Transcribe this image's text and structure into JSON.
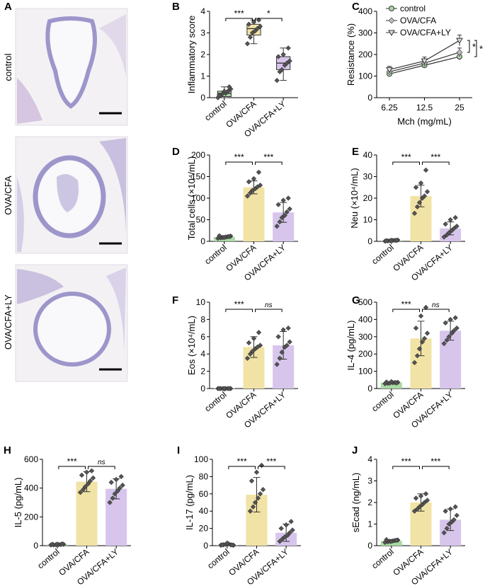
{
  "colors": {
    "control": "#a9d9a3",
    "ova": "#f1e3a5",
    "ly": "#d7c5ec",
    "tissue_bg": "#f3f1f4",
    "tissue_stain": "#8f87c4"
  },
  "panel_a": {
    "letter": "A",
    "rows": [
      {
        "label": "control"
      },
      {
        "label": "OVA/CFA"
      },
      {
        "label": "OVA/CFA+LY"
      }
    ]
  },
  "chart_data": [
    {
      "panel": "B",
      "type": "box",
      "ylabel": "Inflammatory score",
      "ylim": [
        0,
        4
      ],
      "yticks": [
        0,
        1,
        2,
        3,
        4
      ],
      "categories": [
        "control",
        "OVA/CFA",
        "OVA/CFA+LY"
      ],
      "boxes": [
        {
          "min": 0.0,
          "q1": 0.05,
          "median": 0.2,
          "q3": 0.3,
          "max": 0.5
        },
        {
          "min": 2.5,
          "q1": 2.9,
          "median": 3.2,
          "q3": 3.4,
          "max": 3.6
        },
        {
          "min": 0.8,
          "q1": 1.3,
          "median": 1.6,
          "q3": 1.9,
          "max": 2.3
        }
      ],
      "points": [
        [
          0.0,
          0.1,
          0.2,
          0.2,
          0.3,
          0.4,
          0.1,
          0.3,
          0.5
        ],
        [
          2.5,
          2.8,
          3.0,
          3.1,
          3.2,
          3.3,
          3.4,
          3.5,
          3.6
        ],
        [
          0.8,
          1.2,
          1.3,
          1.5,
          1.6,
          1.7,
          1.9,
          2.0,
          2.3
        ]
      ],
      "sig": [
        {
          "from": 0,
          "to": 1,
          "label": "***",
          "italic": false
        },
        {
          "from": 1,
          "to": 2,
          "label": "*",
          "italic": false
        }
      ]
    },
    {
      "panel": "C",
      "type": "line",
      "ylabel": "Resistance (%)",
      "xlabel": "Mch (mg/mL)",
      "ylim": [
        0,
        400
      ],
      "yticks": [
        0,
        100,
        200,
        300,
        400
      ],
      "categories": [
        "6.25",
        "12.5",
        "25"
      ],
      "series": [
        {
          "name": "control",
          "values": [
            110,
            150,
            190
          ],
          "err": [
            10,
            12,
            15
          ],
          "marker": "circle"
        },
        {
          "name": "OVA/CFA",
          "values": [
            120,
            160,
            210
          ],
          "err": [
            12,
            15,
            20
          ],
          "marker": "diamond"
        },
        {
          "name": "OVA/CFA+LY",
          "values": [
            130,
            170,
            265
          ],
          "err": [
            15,
            18,
            25
          ],
          "marker": "triangle"
        }
      ],
      "sig": [
        {
          "label": "*",
          "series": [
            1,
            2
          ]
        },
        {
          "label": "*",
          "series": [
            0,
            2
          ]
        }
      ]
    },
    {
      "panel": "D",
      "type": "bar",
      "ylabel": "Total cells (×10⁴/mL)",
      "ylim": [
        0,
        200
      ],
      "yticks": [
        0,
        50,
        100,
        150,
        200
      ],
      "categories": [
        "control",
        "OVA/CFA",
        "OVA/CFA+LY"
      ],
      "values": [
        10,
        125,
        67
      ],
      "err": [
        3,
        15,
        23
      ],
      "points": [
        [
          7,
          8,
          9,
          10,
          11,
          12,
          13,
          9,
          11
        ],
        [
          105,
          112,
          118,
          122,
          126,
          130,
          138,
          145,
          160
        ],
        [
          35,
          45,
          55,
          60,
          68,
          75,
          85,
          95,
          100
        ]
      ],
      "sig": [
        {
          "from": 0,
          "to": 1,
          "label": "***",
          "italic": false
        },
        {
          "from": 1,
          "to": 2,
          "label": "***",
          "italic": false
        }
      ]
    },
    {
      "panel": "E",
      "type": "bar",
      "ylabel": "Neu (×10⁴/mL)",
      "ylim": [
        0,
        40
      ],
      "yticks": [
        0,
        10,
        20,
        30,
        40
      ],
      "categories": [
        "control",
        "OVA/CFA",
        "OVA/CFA+LY"
      ],
      "values": [
        0.4,
        21,
        6
      ],
      "err": [
        0.2,
        5,
        3
      ],
      "points": [
        [
          0.1,
          0.2,
          0.3,
          0.4,
          0.5,
          0.6,
          0.3,
          0.5,
          0.4
        ],
        [
          13,
          16,
          18,
          20,
          21,
          23,
          25,
          27,
          33
        ],
        [
          2,
          3,
          4,
          5,
          6,
          7,
          8,
          10,
          11
        ]
      ],
      "sig": [
        {
          "from": 0,
          "to": 1,
          "label": "***",
          "italic": false
        },
        {
          "from": 1,
          "to": 2,
          "label": "***",
          "italic": false
        }
      ]
    },
    {
      "panel": "F",
      "type": "bar",
      "ylabel": "Eos (×10⁴/mL)",
      "ylim": [
        0,
        10
      ],
      "yticks": [
        0,
        2,
        4,
        6,
        8,
        10
      ],
      "categories": [
        "control",
        "OVA/CFA",
        "OVA/CFA+LY"
      ],
      "values": [
        0.05,
        4.8,
        5.0
      ],
      "err": [
        0.02,
        1.2,
        1.6
      ],
      "points": [
        [
          0,
          0,
          0,
          0,
          0,
          0,
          0,
          0,
          0
        ],
        [
          3.5,
          4.0,
          4.3,
          4.6,
          4.8,
          5.0,
          5.3,
          5.8,
          6.5
        ],
        [
          2.8,
          3.5,
          4.2,
          4.8,
          5.0,
          5.4,
          6.0,
          6.8,
          7.0
        ]
      ],
      "sig": [
        {
          "from": 0,
          "to": 1,
          "label": "***",
          "italic": false
        },
        {
          "from": 1,
          "to": 2,
          "label": "ns",
          "italic": true
        }
      ]
    },
    {
      "panel": "G",
      "type": "bar",
      "ylabel": "IL-4 (pg/mL)",
      "ylim": [
        0,
        500
      ],
      "yticks": [
        0,
        100,
        200,
        300,
        400,
        500
      ],
      "categories": [
        "control",
        "OVA/CFA",
        "OVA/CFA+LY"
      ],
      "values": [
        35,
        290,
        335
      ],
      "err": [
        5,
        100,
        55
      ],
      "points": [
        [
          28,
          30,
          32,
          34,
          35,
          36,
          38,
          40,
          33
        ],
        [
          150,
          190,
          230,
          270,
          290,
          320,
          350,
          420,
          470
        ],
        [
          260,
          280,
          300,
          320,
          335,
          350,
          380,
          400,
          410
        ]
      ],
      "sig": [
        {
          "from": 0,
          "to": 1,
          "label": "***",
          "italic": false
        },
        {
          "from": 1,
          "to": 2,
          "label": "ns",
          "italic": true
        }
      ]
    },
    {
      "panel": "H",
      "type": "bar",
      "ylabel": "IL-5 (pg/mL)",
      "ylim": [
        0,
        600
      ],
      "yticks": [
        0,
        200,
        400,
        600
      ],
      "categories": [
        "control",
        "OVA/CFA",
        "OVA/CFA+LY"
      ],
      "values": [
        8,
        445,
        395
      ],
      "err": [
        3,
        70,
        70
      ],
      "points": [
        [
          4,
          5,
          6,
          7,
          8,
          9,
          10,
          11,
          12
        ],
        [
          370,
          390,
          410,
          430,
          450,
          470,
          490,
          510,
          520
        ],
        [
          300,
          330,
          360,
          380,
          400,
          420,
          440,
          460,
          480
        ]
      ],
      "sig": [
        {
          "from": 0,
          "to": 1,
          "label": "***",
          "italic": false
        },
        {
          "from": 1,
          "to": 2,
          "label": "ns",
          "italic": true
        }
      ]
    },
    {
      "panel": "I",
      "type": "bar",
      "ylabel": "IL-17 (pg/mL)",
      "ylim": [
        0,
        100
      ],
      "yticks": [
        0,
        20,
        40,
        60,
        80,
        100
      ],
      "categories": [
        "control",
        "OVA/CFA",
        "OVA/CFA+LY"
      ],
      "values": [
        1,
        59,
        15
      ],
      "err": [
        1,
        20,
        10
      ],
      "points": [
        [
          0.5,
          1,
          1.5,
          2,
          1,
          0.5,
          1,
          3,
          0.8
        ],
        [
          40,
          45,
          50,
          55,
          60,
          65,
          75,
          85,
          93
        ],
        [
          5,
          8,
          10,
          12,
          15,
          18,
          20,
          24,
          28
        ]
      ],
      "sig": [
        {
          "from": 0,
          "to": 1,
          "label": "***",
          "italic": false
        },
        {
          "from": 1,
          "to": 2,
          "label": "***",
          "italic": false
        }
      ]
    },
    {
      "panel": "J",
      "type": "bar",
      "ylabel": "sEcad (ng/mL)",
      "ylim": [
        0,
        4
      ],
      "yticks": [
        0,
        1,
        2,
        3,
        4
      ],
      "categories": [
        "control",
        "OVA/CFA",
        "OVA/CFA+LY"
      ],
      "values": [
        0.22,
        2.0,
        1.2
      ],
      "err": [
        0.06,
        0.4,
        0.5
      ],
      "points": [
        [
          0.15,
          0.18,
          0.2,
          0.22,
          0.24,
          0.26,
          0.28,
          0.2,
          0.25
        ],
        [
          1.6,
          1.7,
          1.8,
          1.9,
          2.0,
          2.1,
          2.2,
          2.3,
          2.4
        ],
        [
          0.6,
          0.8,
          1.0,
          1.1,
          1.2,
          1.4,
          1.6,
          1.7,
          1.8
        ]
      ],
      "sig": [
        {
          "from": 0,
          "to": 1,
          "label": "***",
          "italic": false
        },
        {
          "from": 1,
          "to": 2,
          "label": "***",
          "italic": false
        }
      ]
    }
  ]
}
